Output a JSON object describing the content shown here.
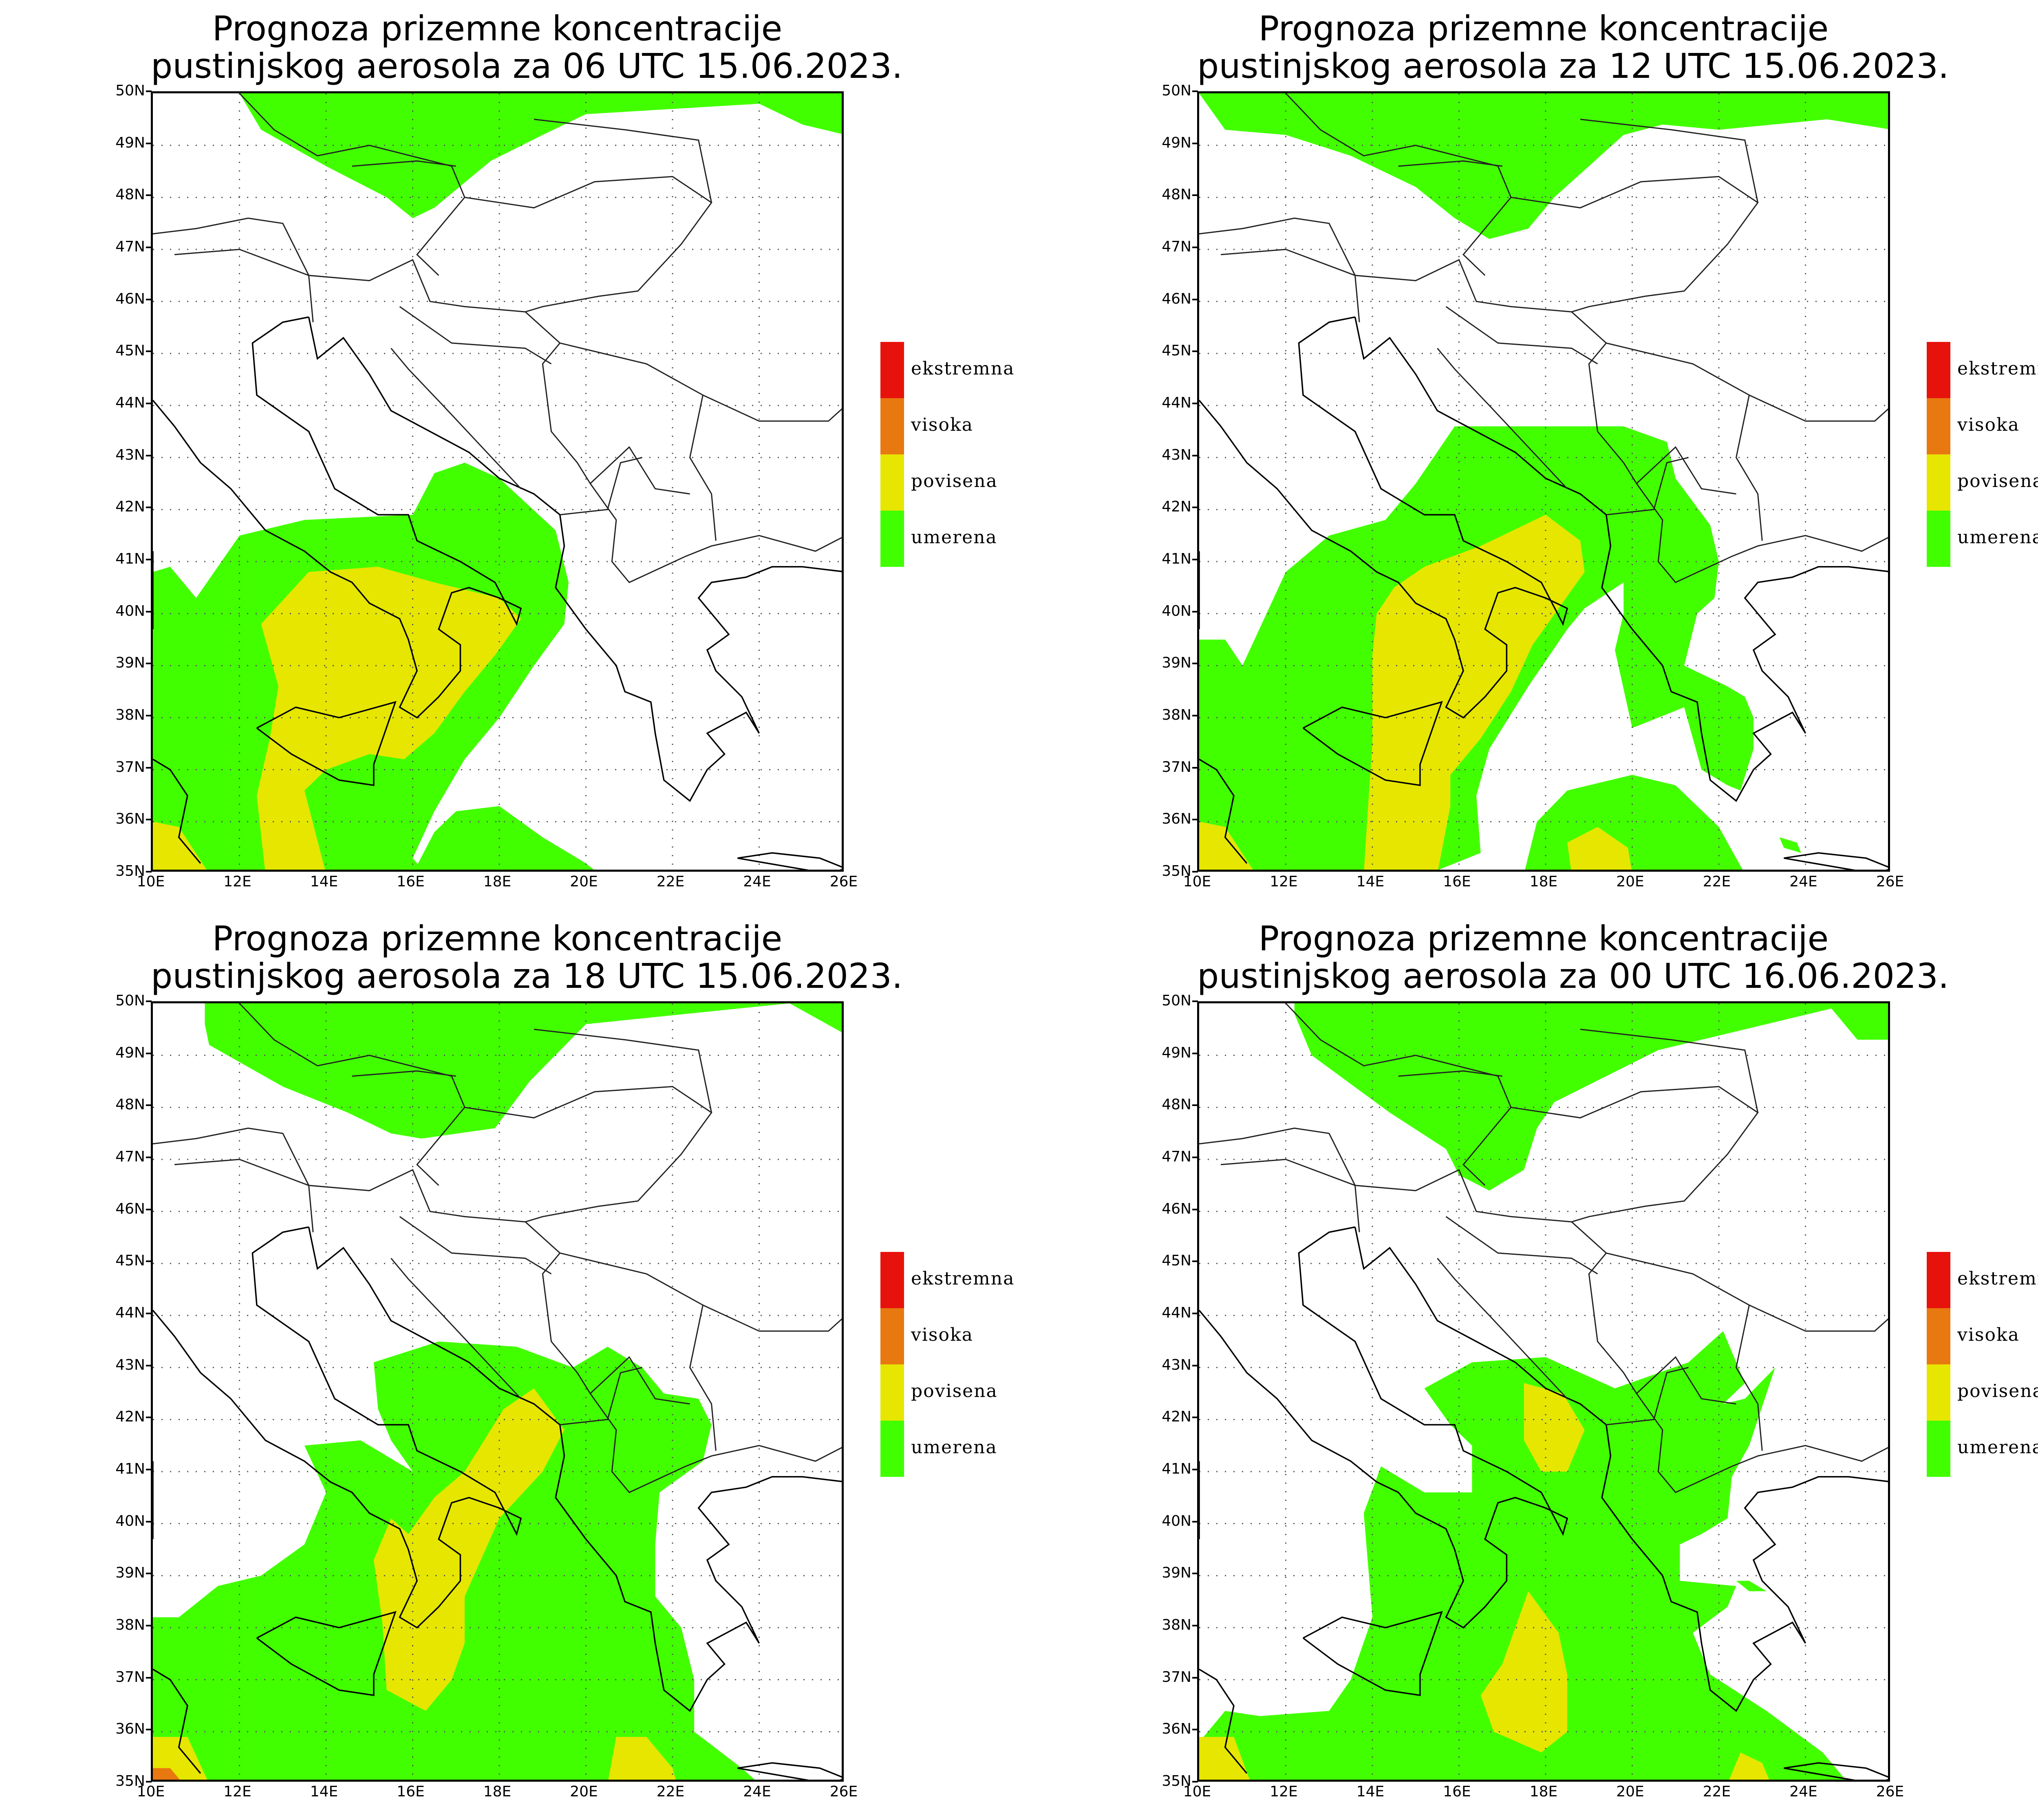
{
  "panels": [
    {
      "title_line1": "Prognoza prizemne koncentracije",
      "title_line2": "pustinjskog aerosola za 06 UTC 15.06.2023.",
      "legend_labels": [
        "ekstremna",
        "visoka",
        "povisena",
        "umerena"
      ]
    },
    {
      "title_line1": "Prognoza prizemne koncentracije",
      "title_line2": "pustinjskog aerosola za 12 UTC 15.06.2023.",
      "legend_labels": [
        "ekstremna",
        "visoka",
        "povisena",
        "umerena"
      ]
    },
    {
      "title_line1": "Prognoza prizemne koncentracije",
      "title_line2": "pustinjskog aerosola za 18 UTC 15.06.2023.",
      "legend_labels": [
        "ekstremna",
        "visoka",
        "povisena",
        "umerena"
      ]
    },
    {
      "title_line1": "Prognoza prizemne koncentracije",
      "title_line2": "pustinjskog aerosola za 00 UTC 16.06.2023.",
      "legend_labels": [
        "ekstremna",
        "visoka",
        "povisena",
        "umerena"
      ]
    }
  ],
  "lat_ticks": [
    "50N",
    "49N",
    "48N",
    "47N",
    "46N",
    "45N",
    "44N",
    "43N",
    "42N",
    "41N",
    "40N",
    "39N",
    "38N",
    "37N",
    "36N",
    "35N"
  ],
  "lon_ticks": [
    "10E",
    "12E",
    "14E",
    "16E",
    "18E",
    "20E",
    "22E",
    "24E",
    "26E"
  ],
  "legend_colors": {
    "ekstremna": "#e8120c",
    "visoka": "#e87810",
    "povisena": "#e6e600",
    "umerena": "#42ff00"
  }
}
